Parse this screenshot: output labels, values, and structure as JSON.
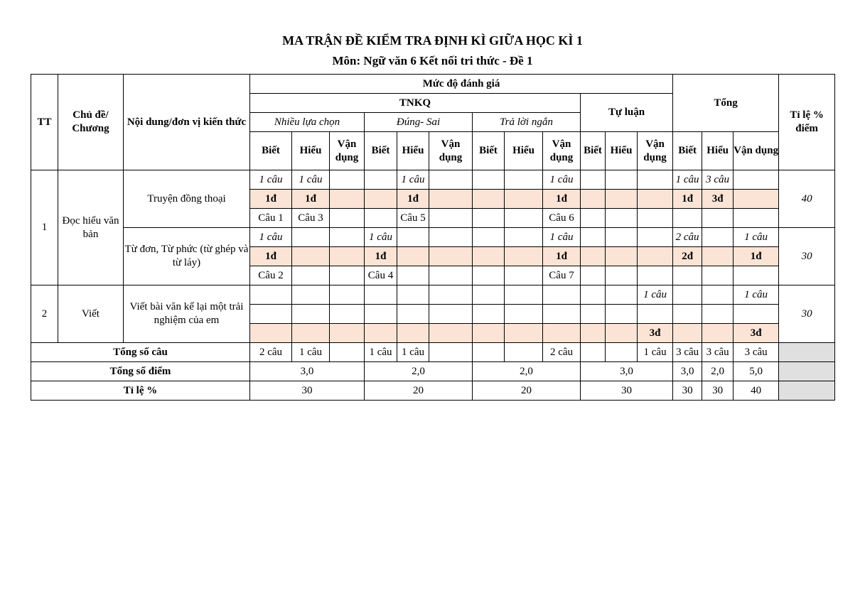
{
  "header": {
    "title": "MA TRẬN ĐỀ KIỂM TRA ĐỊNH KÌ GIỮA HỌC KÌ 1",
    "subtitle": "Môn: Ngữ văn 6 Kết nối tri thức - Đề 1"
  },
  "table": {
    "head": {
      "tt": "TT",
      "topic": "Chủ đề/ Chương",
      "content": "Nội dung/đơn vị kiến thức",
      "level": "Mức độ đánh giá",
      "tnkq": "TNKQ",
      "mc": "Nhiều lựa chọn",
      "tf": "Đúng- Sai",
      "short": "Trả lời ngắn",
      "essay": "Tự luận",
      "total": "Tổng",
      "ratio": "Tỉ lệ % điểm",
      "levels": [
        "Biết",
        "Hiểu",
        "Vận dụng",
        "Biết",
        "Hiểu",
        "Vận dụng",
        "Biết",
        "Hiểu",
        "Vận dụng",
        "Biết",
        "Hiểu",
        "Vận dụng",
        "Biết",
        "Hiểu",
        "Vận dụng"
      ]
    },
    "sections": [
      {
        "tt": "1",
        "topic": "Đọc hiểu văn bản",
        "units": [
          {
            "content": "Truyện đồng thoại",
            "ratio": "40",
            "rows": [
              [
                "1 câu",
                "1 câu",
                null,
                null,
                "1 câu",
                null,
                null,
                null,
                "1 câu",
                null,
                null,
                null,
                "1 câu",
                "3 câu",
                null
              ],
              [
                "1đ",
                "1đ",
                null,
                null,
                "1đ",
                null,
                null,
                null,
                "1đ",
                null,
                null,
                null,
                "1đ",
                "3đ",
                null
              ],
              [
                "Câu 1",
                "Câu 3",
                null,
                null,
                "Câu 5",
                null,
                null,
                null,
                "Câu 6",
                null,
                null,
                null,
                null,
                null,
                null
              ]
            ]
          },
          {
            "content": "Từ đơn, Từ phức (từ ghép và từ láy)",
            "ratio": "30",
            "rows": [
              [
                "1 câu",
                null,
                null,
                "1 câu",
                null,
                null,
                null,
                null,
                "1 câu",
                null,
                null,
                null,
                "2 câu",
                null,
                "1 câu"
              ],
              [
                "1đ",
                null,
                null,
                "1đ",
                null,
                null,
                null,
                null,
                "1đ",
                null,
                null,
                null,
                "2đ",
                null,
                "1đ"
              ],
              [
                "Câu 2",
                null,
                null,
                "Câu 4",
                null,
                null,
                null,
                null,
                "Câu 7",
                null,
                null,
                null,
                null,
                null,
                null
              ]
            ]
          }
        ]
      },
      {
        "tt": "2",
        "topic": "Viết",
        "units": [
          {
            "content": "Viết bài văn kể lại một trải nghiệm của em",
            "ratio": "30",
            "rows": [
              [
                null,
                null,
                null,
                null,
                null,
                null,
                null,
                null,
                null,
                null,
                null,
                "1 câu",
                null,
                null,
                "1 câu"
              ],
              [
                null,
                null,
                null,
                null,
                null,
                null,
                null,
                null,
                null,
                null,
                null,
                null,
                null,
                null,
                null
              ],
              [
                null,
                null,
                null,
                null,
                null,
                null,
                null,
                null,
                null,
                null,
                null,
                "3đ",
                null,
                null,
                "3đ"
              ]
            ]
          }
        ]
      }
    ],
    "footer": [
      {
        "label": "Tổng số câu",
        "cells": [
          "2 câu",
          "1 câu",
          null,
          "1 câu",
          "1 câu",
          null,
          null,
          null,
          "2 câu",
          null,
          null,
          "1 câu",
          "3 câu",
          "3 câu",
          "3 câu"
        ]
      },
      {
        "label": "Tổng số điểm",
        "cells": [
          "3,0",
          "2,0",
          "2,0",
          "3,0",
          "3,0",
          "2,0",
          "5,0"
        ]
      },
      {
        "label": "Tỉ lệ %",
        "cells": [
          "30",
          "20",
          "20",
          "30",
          "30",
          "30",
          "40"
        ]
      }
    ]
  }
}
